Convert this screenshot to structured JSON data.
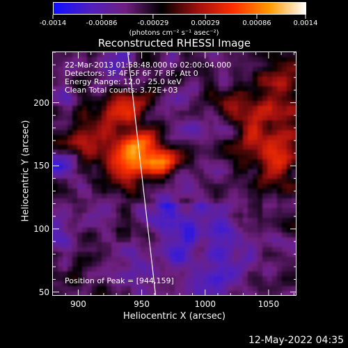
{
  "colorbar": {
    "tick_labels": [
      "-0.0014",
      "-0.00086",
      "-0.00029",
      "0.00029",
      "0.00086",
      "0.0014"
    ],
    "tick_values": [
      -0.0014,
      -0.00086,
      -0.00029,
      0.00029,
      0.00086,
      0.0014
    ],
    "range": [
      -0.0014,
      0.0014
    ],
    "units_label": "(photons cm⁻² s⁻¹ asec⁻²)",
    "colors": [
      "#1010ff",
      "#5020c0",
      "#702080",
      "#000000",
      "#a01010",
      "#ff3000",
      "#ff9a00",
      "#ffffff"
    ]
  },
  "plot": {
    "title": "Reconstructed RHESSI Image",
    "info_lines": [
      "22-Mar-2013 01:58:48.000 to 02:00:04.000",
      "Detectors: 3F 4F 5F 6F 7F 8F, Att 0",
      "Energy Range: 12.0 - 25.0 keV",
      "Clean    Total counts: 3.72E+03"
    ],
    "peak_text": "Position of Peak = [944,159]",
    "xlabel": "Heliocentric X (arcsec)",
    "ylabel": "Heliocentric Y (arcsec)",
    "x_ticks": [
      "900",
      "950",
      "1000",
      "1050"
    ],
    "y_ticks": [
      "50",
      "100",
      "150",
      "200"
    ],
    "xlim": [
      880,
      1072
    ],
    "ylim": [
      47,
      240
    ]
  },
  "chart_data": {
    "type": "heatmap",
    "title": "Reconstructed RHESSI Image",
    "xlabel": "Heliocentric X (arcsec)",
    "ylabel": "Heliocentric Y (arcsec)",
    "xlim": [
      880,
      1072
    ],
    "ylim": [
      47,
      240
    ],
    "x_ticks": [
      900,
      950,
      1000,
      1050
    ],
    "y_ticks": [
      50,
      100,
      150,
      200
    ],
    "peak": [
      944,
      159
    ],
    "limb_line": [
      [
        939,
        240
      ],
      [
        961,
        47
      ]
    ]
  },
  "footer": {
    "timestamp": "12-May-2022 04:35"
  }
}
